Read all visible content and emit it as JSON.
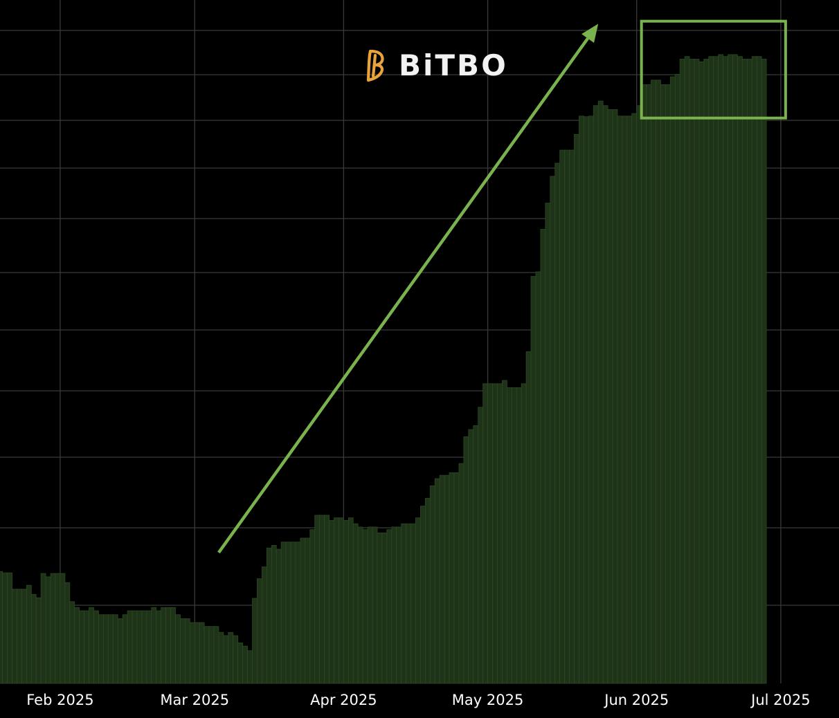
{
  "logo": {
    "text": "BiTBO",
    "mark_color": "#e8a33d"
  },
  "colors": {
    "background": "#000000",
    "grid": "#3a3a3a",
    "bar_fill": "#1e3318",
    "bar_edge": "#2b4a22",
    "annotation": "#7ab24e"
  },
  "chart_data": {
    "type": "bar",
    "title": "",
    "xlabel": "",
    "ylabel": "",
    "grid": true,
    "y_ticks_shown": false,
    "x_start": "2025-01-19",
    "x_end": "2025-07-07",
    "ylim": [
      0,
      100
    ],
    "x_tick_labels": [
      {
        "label": "Feb 2025",
        "date": "2025-02-01"
      },
      {
        "label": "Mar 2025",
        "date": "2025-03-01"
      },
      {
        "label": "Apr 2025",
        "date": "2025-04-01"
      },
      {
        "label": "May 2025",
        "date": "2025-05-01"
      },
      {
        "label": "Jun 2025",
        "date": "2025-06-01"
      },
      {
        "label": "Jul 2025",
        "date": "2025-07-01"
      }
    ],
    "series": [
      {
        "values": [
          17.1,
          16.9,
          16.9,
          14.4,
          14.4,
          14.4,
          15.0,
          13.6,
          13.1,
          16.8,
          16.3,
          16.8,
          16.8,
          16.8,
          15.4,
          12.5,
          11.6,
          11.1,
          11.1,
          11.6,
          11.1,
          10.5,
          10.5,
          10.5,
          10.5,
          9.9,
          10.5,
          11.1,
          11.1,
          11.1,
          11.1,
          11.1,
          11.6,
          11.1,
          11.6,
          11.6,
          11.6,
          10.5,
          9.9,
          9.9,
          9.3,
          9.3,
          9.3,
          8.7,
          8.7,
          8.7,
          7.8,
          7.3,
          7.8,
          7.3,
          6.2,
          5.7,
          5.0,
          13.0,
          16.0,
          17.8,
          20.7,
          21.1,
          20.5,
          21.6,
          21.6,
          21.6,
          21.6,
          22.2,
          22.2,
          23.5,
          25.7,
          25.7,
          25.7,
          24.9,
          25.3,
          25.3,
          24.9,
          25.3,
          24.4,
          23.9,
          23.5,
          23.9,
          23.9,
          23.0,
          23.0,
          23.5,
          23.9,
          23.9,
          24.4,
          24.4,
          24.4,
          25.3,
          27.1,
          28.3,
          30.2,
          31.3,
          31.8,
          31.8,
          32.2,
          32.2,
          33.6,
          37.7,
          38.8,
          39.4,
          42.2,
          45.8,
          45.8,
          45.8,
          45.8,
          46.3,
          45.2,
          45.2,
          45.2,
          45.8,
          50.7,
          62.2,
          62.9,
          69.4,
          73.4,
          77.5,
          79.5,
          81.5,
          81.5,
          81.5,
          83.9,
          86.7,
          86.6,
          86.7,
          88.3,
          89.0,
          88.3,
          87.7,
          87.7,
          86.7,
          86.7,
          86.7,
          87.1,
          88.3,
          91.5,
          91.5,
          92.2,
          92.2,
          91.5,
          91.5,
          92.7,
          93.1,
          95.4,
          95.8,
          95.4,
          95.4,
          95.0,
          95.4,
          95.8,
          95.8,
          96.1,
          95.8,
          96.1,
          96.1,
          95.8,
          95.4,
          95.4,
          95.8,
          95.8,
          95.4
        ]
      }
    ],
    "annotations": [
      {
        "type": "arrow",
        "from": [
          "2025-03-06",
          20.0
        ],
        "to": [
          "2025-05-24",
          100.8
        ]
      },
      {
        "type": "rectangle",
        "x_range": [
          "2025-06-02",
          "2025-07-02"
        ],
        "y_range": [
          86.4,
          101.2
        ]
      }
    ]
  }
}
